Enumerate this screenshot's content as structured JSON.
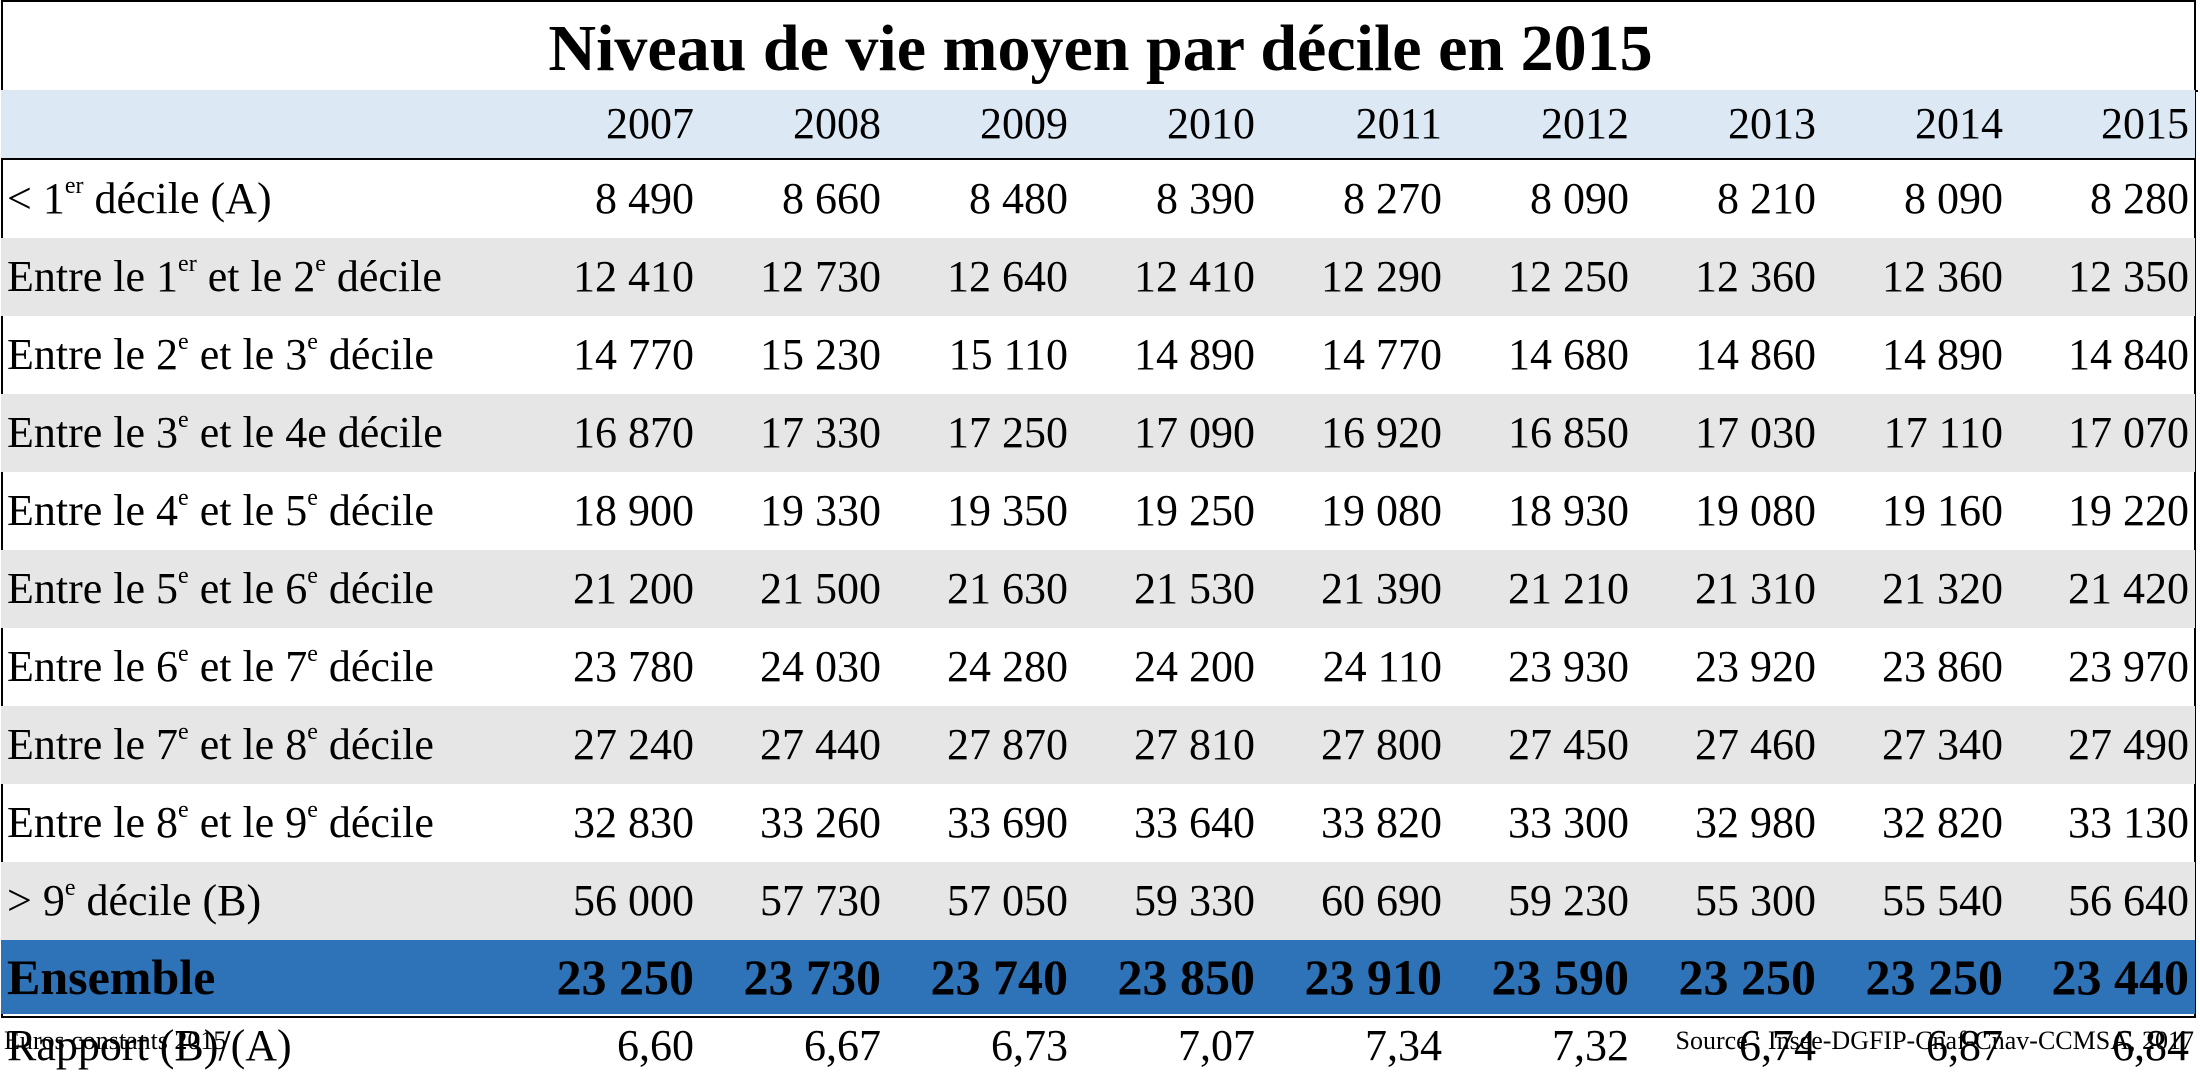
{
  "chart_data": {
    "type": "table",
    "title": "Niveau de vie moyen par décile en 2015",
    "columns": [
      "2007",
      "2008",
      "2009",
      "2010",
      "2011",
      "2012",
      "2013",
      "2014",
      "2015"
    ],
    "rows": [
      {
        "label": [
          "< 1",
          "er",
          " décile (A)"
        ],
        "values": [
          "8 490",
          "8 660",
          "8 480",
          "8 390",
          "8 270",
          "8 090",
          "8 210",
          "8 090",
          "8 280"
        ]
      },
      {
        "label": [
          "Entre le 1",
          "er",
          " et le 2",
          "e",
          " décile"
        ],
        "values": [
          "12 410",
          "12 730",
          "12 640",
          "12 410",
          "12 290",
          "12 250",
          "12 360",
          "12 360",
          "12 350"
        ]
      },
      {
        "label": [
          "Entre le 2",
          "e",
          " et le 3",
          "e",
          " décile"
        ],
        "values": [
          "14 770",
          "15 230",
          "15 110",
          "14 890",
          "14 770",
          "14 680",
          "14 860",
          "14 890",
          "14 840"
        ]
      },
      {
        "label": [
          "Entre le 3",
          "e",
          " et le 4e décile"
        ],
        "values": [
          "16 870",
          "17 330",
          "17 250",
          "17 090",
          "16 920",
          "16 850",
          "17 030",
          "17 110",
          "17 070"
        ]
      },
      {
        "label": [
          "Entre le 4",
          "e",
          " et le 5",
          "e",
          " décile"
        ],
        "values": [
          "18 900",
          "19 330",
          "19 350",
          "19 250",
          "19 080",
          "18 930",
          "19 080",
          "19 160",
          "19 220"
        ]
      },
      {
        "label": [
          "Entre le 5",
          "e",
          " et le 6",
          "e",
          " décile"
        ],
        "values": [
          "21 200",
          "21 500",
          "21 630",
          "21 530",
          "21 390",
          "21 210",
          "21 310",
          "21 320",
          "21 420"
        ]
      },
      {
        "label": [
          "Entre le 6",
          "e",
          " et le 7",
          "e",
          " décile"
        ],
        "values": [
          "23 780",
          "24 030",
          "24 280",
          "24 200",
          "24 110",
          "23 930",
          "23 920",
          "23 860",
          "23 970"
        ]
      },
      {
        "label": [
          "Entre le 7",
          "e",
          " et le 8",
          "e",
          " décile"
        ],
        "values": [
          "27 240",
          "27 440",
          "27 870",
          "27 810",
          "27 800",
          "27 450",
          "27 460",
          "27 340",
          "27 490"
        ]
      },
      {
        "label": [
          "Entre le 8",
          "e",
          " et le 9",
          "e",
          " décile"
        ],
        "values": [
          "32 830",
          "33 260",
          "33 690",
          "33 640",
          "33 820",
          "33 300",
          "32 980",
          "32 820",
          "33 130"
        ]
      },
      {
        "label": [
          "> 9",
          "e",
          " décile (B)"
        ],
        "values": [
          "56 000",
          "57 730",
          "57 050",
          "59 330",
          "60 690",
          "59 230",
          "55 300",
          "55 540",
          "56 640"
        ]
      }
    ],
    "total": {
      "label": "Ensemble",
      "values": [
        "23 250",
        "23 730",
        "23 740",
        "23 850",
        "23 910",
        "23 590",
        "23 250",
        "23 250",
        "23 440"
      ]
    },
    "ratio": {
      "label": "Rapport (B)/(A)",
      "values": [
        "6,60",
        "6,67",
        "6,73",
        "7,07",
        "7,34",
        "7,32",
        "6,74",
        "6,87",
        "6,84"
      ]
    },
    "note": "Euros constants 2015",
    "source": "Source : Insee-DGFIP-Cnaf-Cnav-CCMSA, 2017",
    "colors": {
      "header_bg": "#dce9f4",
      "shaded_row": "#e6e6e6",
      "total_row": "#2e72b8"
    }
  }
}
